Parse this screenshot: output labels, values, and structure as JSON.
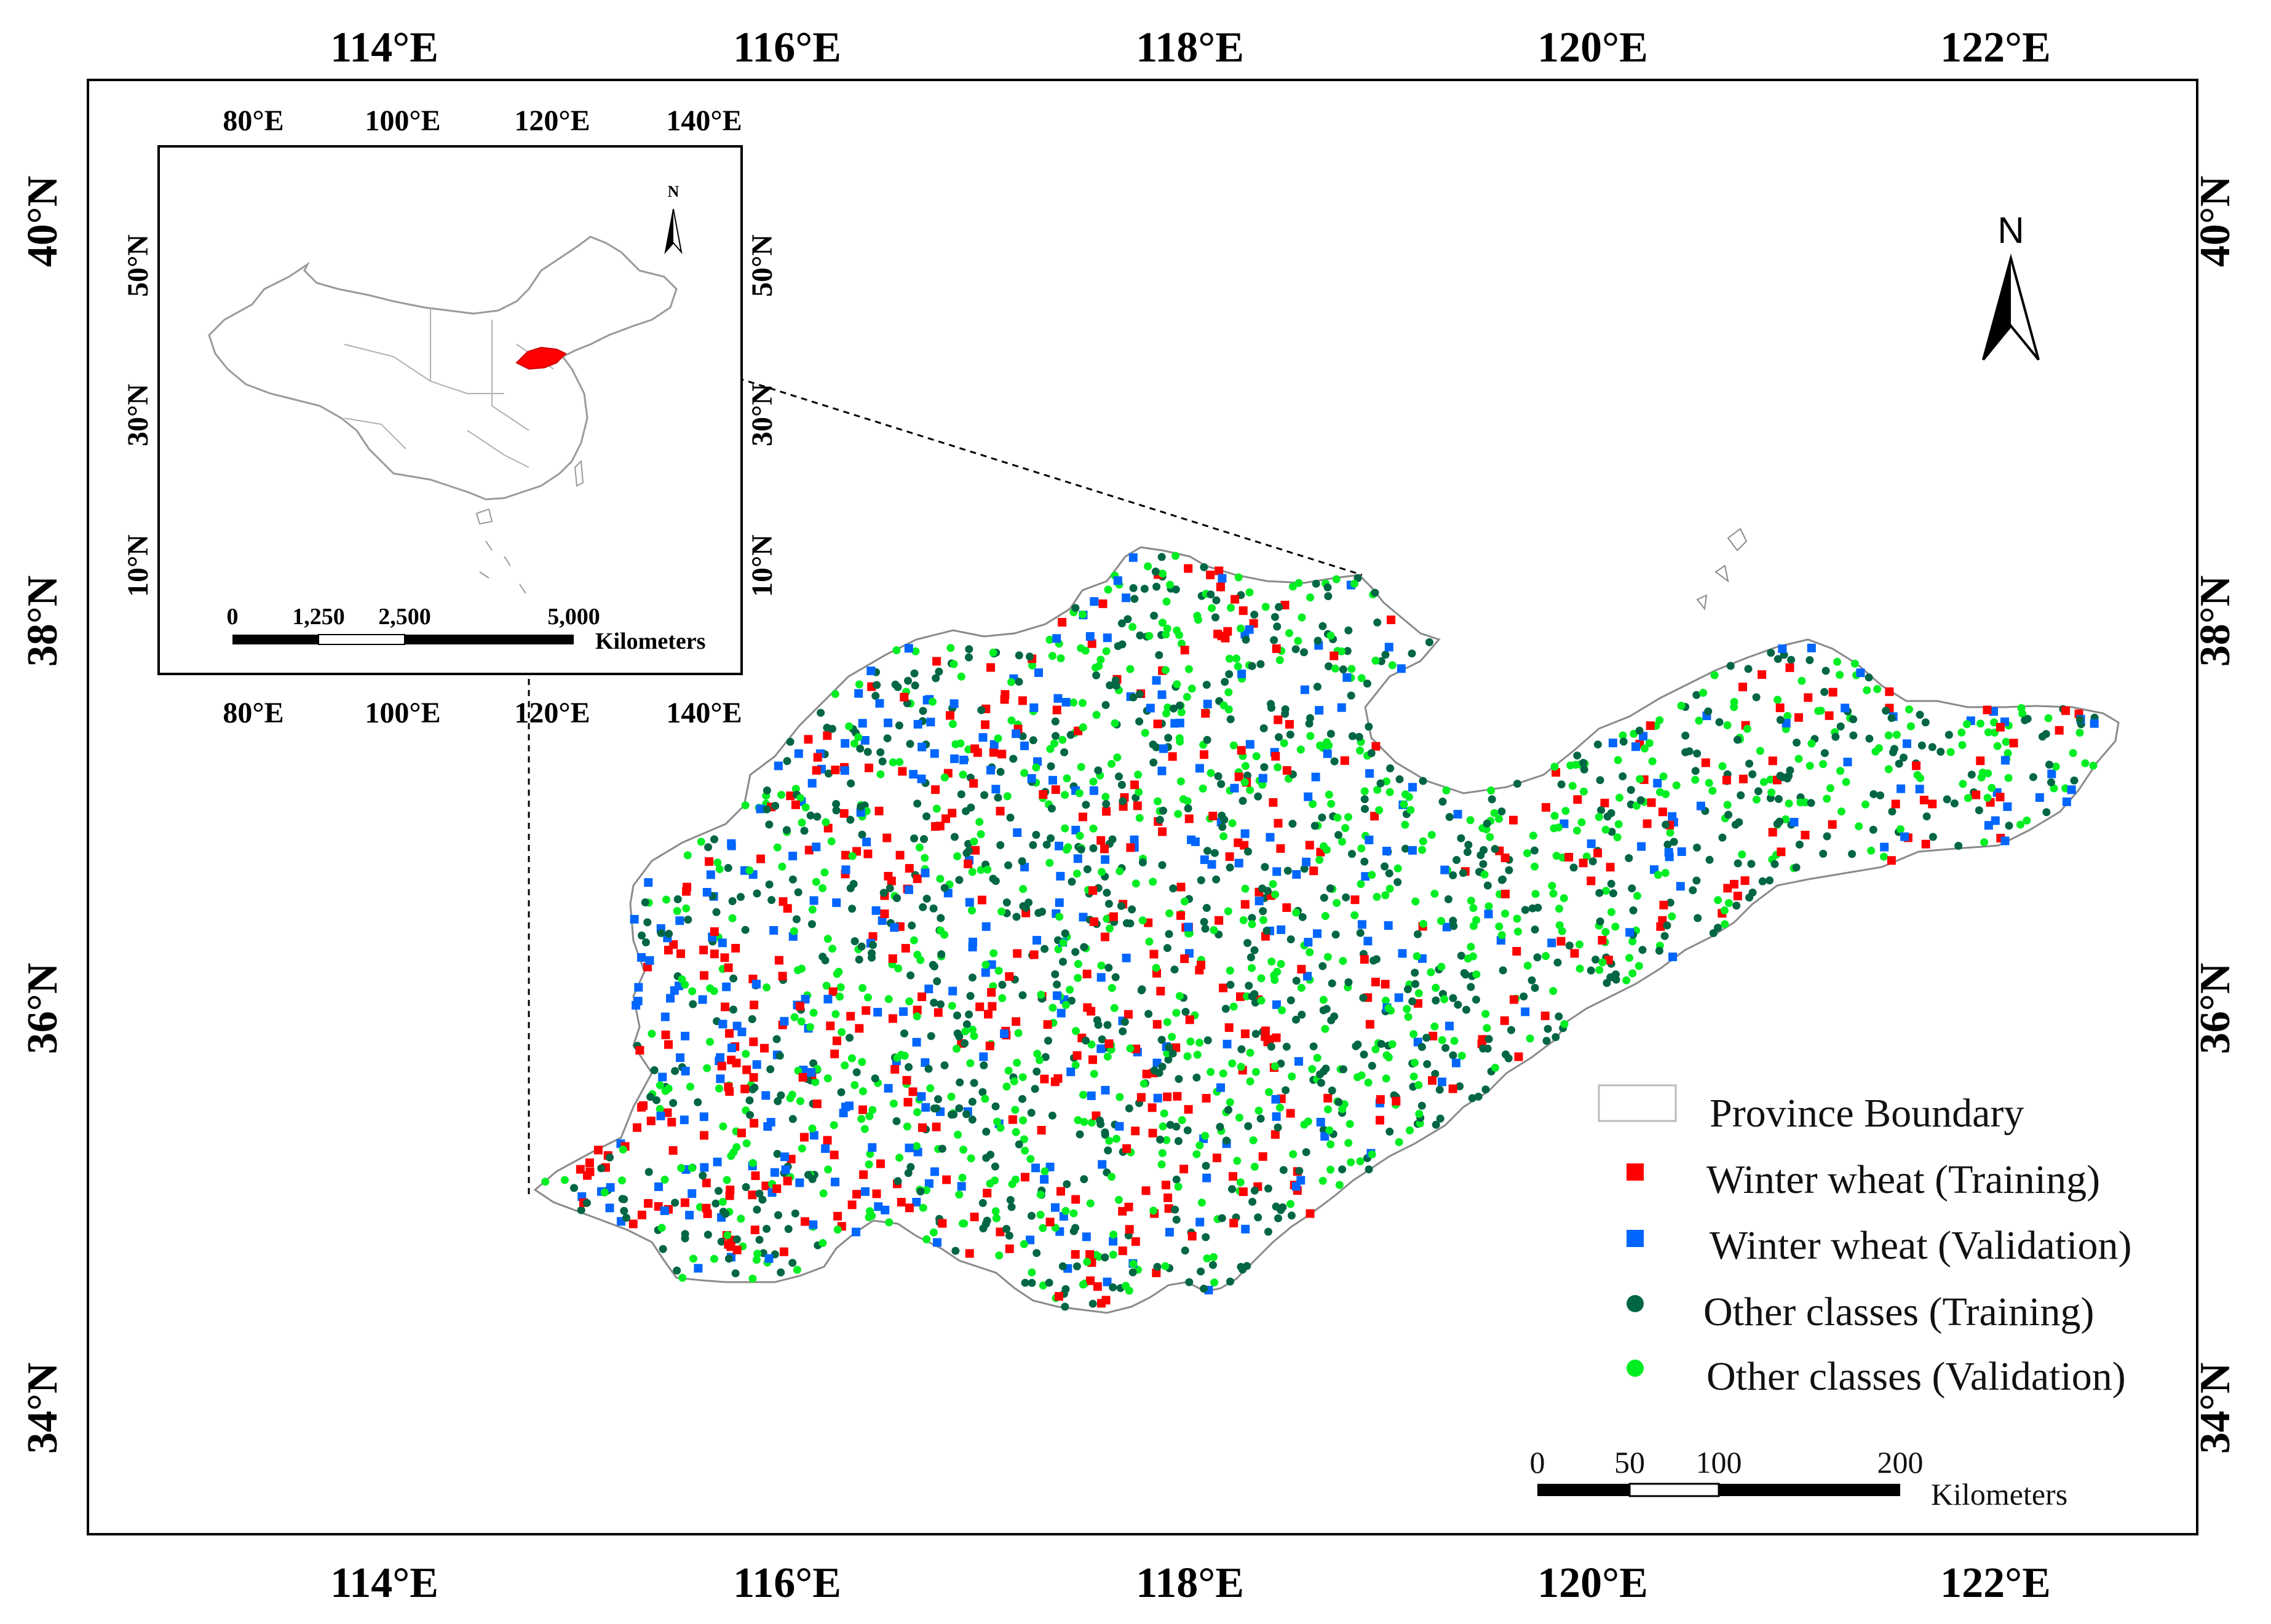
{
  "main_map": {
    "lon_labels": [
      "114°E",
      "116°E",
      "118°E",
      "120°E",
      "122°E"
    ],
    "lat_labels": [
      "40°N",
      "38°N",
      "36°N",
      "34°N"
    ],
    "lon_range": [
      112.6,
      123.1
    ],
    "lat_range": [
      33.35,
      40.75
    ],
    "north_label": "N"
  },
  "inset_map": {
    "lon_labels": [
      "80°E",
      "100°E",
      "120°E",
      "140°E"
    ],
    "lat_labels": [
      "50°N",
      "30°N",
      "10°N"
    ],
    "lon_range": [
      68,
      147
    ],
    "lat_range": [
      -6,
      65
    ],
    "north_label": "N",
    "scale_labels": [
      "0",
      "1,250",
      "2,500",
      "5,000"
    ],
    "scale_unit": "Kilometers",
    "highlight_color": "#ff0000"
  },
  "legend": {
    "items": [
      {
        "label": "Province Boundary",
        "shape": "rectangle-outline",
        "color": "#cccccc"
      },
      {
        "label": "Winter wheat (Training)",
        "shape": "square",
        "color": "#ff0000"
      },
      {
        "label": "Winter wheat (Validation)",
        "shape": "square",
        "color": "#0066ff"
      },
      {
        "label": "Other classes (Training)",
        "shape": "circle",
        "color": "#006644"
      },
      {
        "label": "Other classes (Validation)",
        "shape": "circle",
        "color": "#00ee22"
      }
    ]
  },
  "scale_bar": {
    "labels": [
      "0",
      "50",
      "100",
      "200"
    ],
    "unit": "Kilometers"
  }
}
